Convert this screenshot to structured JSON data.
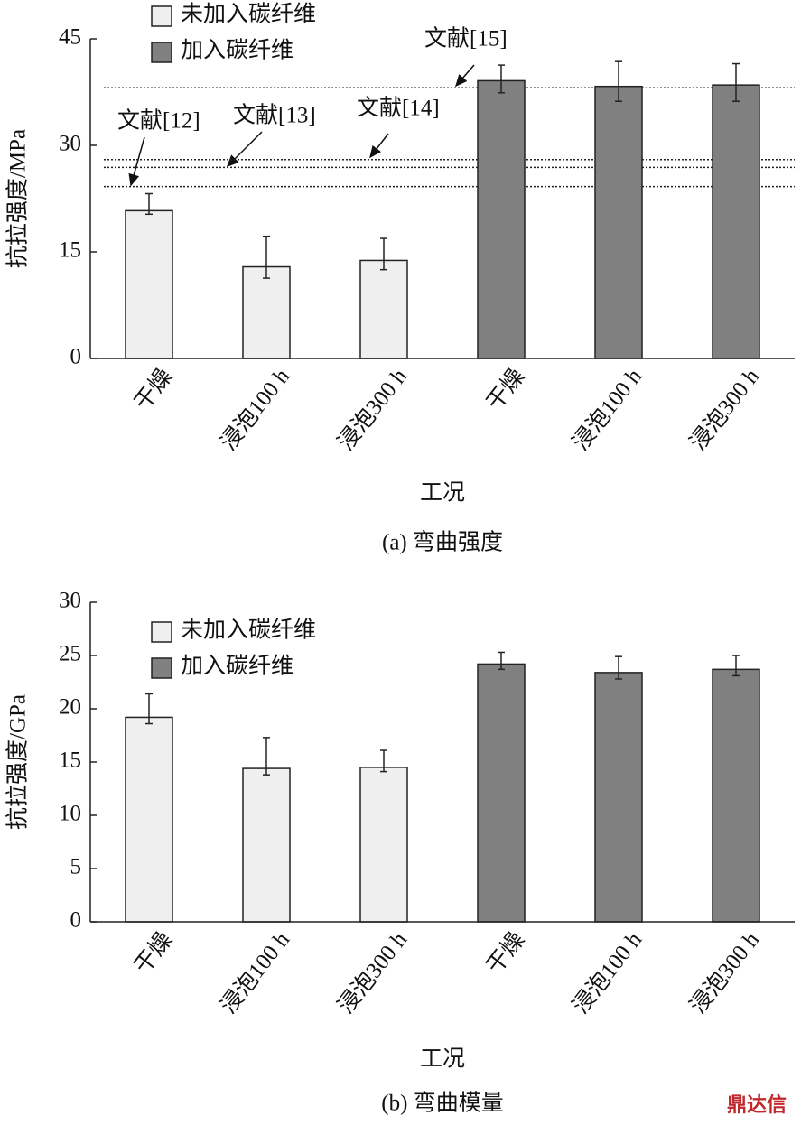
{
  "chart_data": [
    {
      "type": "bar",
      "y_label": "抗拉强度/MPa",
      "x_label": "工况",
      "caption": "(a) 弯曲强度",
      "categories": [
        "干燥",
        "浸泡100 h",
        "浸泡300 h",
        "干燥",
        "浸泡100 h",
        "浸泡300 h"
      ],
      "series": [
        {
          "name": "未加入碳纤维",
          "color": "#efefef",
          "values": [
            20.8,
            12.9,
            13.8,
            null,
            null,
            null
          ],
          "error_upper": [
            2.4,
            4.3,
            3.1,
            null,
            null,
            null
          ],
          "error_lower": [
            0.5,
            1.6,
            1.3,
            null,
            null,
            null
          ]
        },
        {
          "name": "加入碳纤维",
          "color": "#808080",
          "values": [
            null,
            null,
            null,
            39.1,
            38.3,
            38.5
          ],
          "error_upper": [
            null,
            null,
            null,
            2.2,
            3.5,
            3.0
          ],
          "error_lower": [
            null,
            null,
            null,
            1.7,
            2.1,
            2.3
          ]
        }
      ],
      "reference_lines": [
        {
          "label": "文献[12]",
          "value": 24.2
        },
        {
          "label": "文献[13]",
          "value": 26.9
        },
        {
          "label": "文献[14]",
          "value": 28.0
        },
        {
          "label": "文献[15]",
          "value": 38.1
        }
      ],
      "ylim": [
        0,
        45
      ],
      "yticks": [
        0,
        15,
        30,
        45
      ],
      "legend": "upper left"
    },
    {
      "type": "bar",
      "y_label": "抗拉强度/GPa",
      "x_label": "工况",
      "caption": "(b) 弯曲模量",
      "categories": [
        "干燥",
        "浸泡100 h",
        "浸泡300 h",
        "干燥",
        "浸泡100 h",
        "浸泡300 h"
      ],
      "series": [
        {
          "name": "未加入碳纤维",
          "color": "#efefef",
          "values": [
            19.2,
            14.4,
            14.5,
            null,
            null,
            null
          ],
          "error_upper": [
            2.2,
            2.9,
            1.6,
            null,
            null,
            null
          ],
          "error_lower": [
            0.6,
            0.6,
            0.4,
            null,
            null,
            null
          ]
        },
        {
          "name": "加入碳纤维",
          "color": "#808080",
          "values": [
            null,
            null,
            null,
            24.2,
            23.4,
            23.7
          ],
          "error_upper": [
            null,
            null,
            null,
            1.1,
            1.5,
            1.3
          ],
          "error_lower": [
            null,
            null,
            null,
            0.5,
            0.6,
            0.6
          ]
        }
      ],
      "ylim": [
        0,
        30
      ],
      "yticks": [
        0,
        5,
        10,
        15,
        20,
        25,
        30
      ],
      "legend": "upper left"
    }
  ],
  "watermark": "鼎达信"
}
